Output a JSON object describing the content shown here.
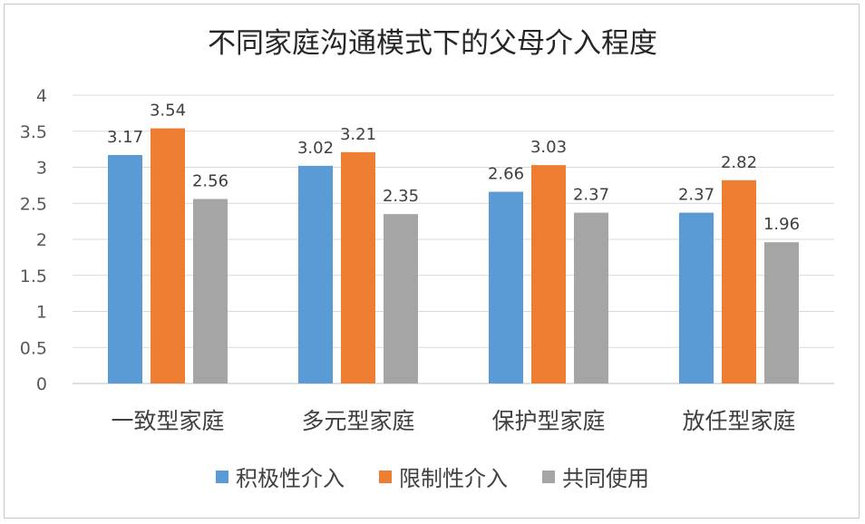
{
  "chart_data": {
    "type": "bar",
    "title": "不同家庭沟通模式下的父母介入程度",
    "categories": [
      "一致型家庭",
      "多元型家庭",
      "保护型家庭",
      "放任型家庭"
    ],
    "series": [
      {
        "name": "积极性介入",
        "color": "#5b9bd5",
        "values": [
          3.17,
          3.02,
          2.66,
          2.37
        ]
      },
      {
        "name": "限制性介入",
        "color": "#ed7d31",
        "values": [
          3.54,
          3.21,
          3.03,
          2.82
        ]
      },
      {
        "name": "共同使用",
        "color": "#a5a5a5",
        "values": [
          2.56,
          2.35,
          2.37,
          1.96
        ]
      }
    ],
    "ylim": [
      0,
      4
    ],
    "yticks": [
      "0",
      "0.5",
      "1",
      "1.5",
      "2",
      "2.5",
      "3",
      "3.5",
      "4"
    ],
    "grid": true,
    "legend_position": "bottom"
  }
}
